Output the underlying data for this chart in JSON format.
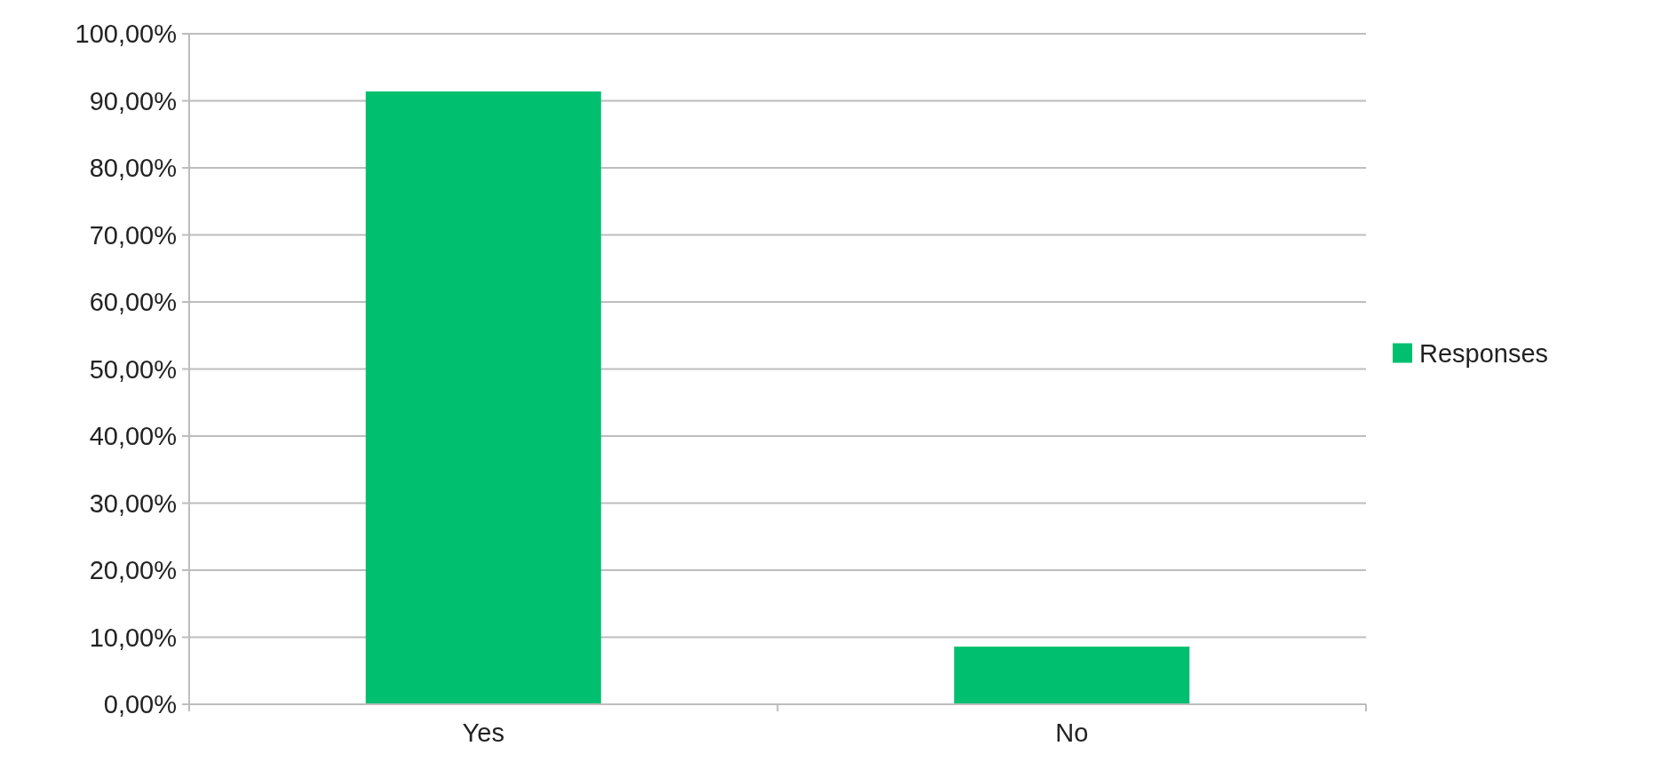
{
  "chart_data": {
    "type": "bar",
    "categories": [
      "Yes",
      "No"
    ],
    "series": [
      {
        "name": "Responses",
        "color": "#00bf6f",
        "values": [
          91.4,
          8.6
        ]
      }
    ],
    "ylim": [
      0,
      100
    ],
    "yticks": [
      {
        "value": 0,
        "label": "0,00%"
      },
      {
        "value": 10,
        "label": "10,00%"
      },
      {
        "value": 20,
        "label": "20,00%"
      },
      {
        "value": 30,
        "label": "30,00%"
      },
      {
        "value": 40,
        "label": "40,00%"
      },
      {
        "value": 50,
        "label": "50,00%"
      },
      {
        "value": 60,
        "label": "60,00%"
      },
      {
        "value": 70,
        "label": "70,00%"
      },
      {
        "value": 80,
        "label": "80,00%"
      },
      {
        "value": 90,
        "label": "90,00%"
      },
      {
        "value": 100,
        "label": "100,00%"
      }
    ],
    "grid": "y",
    "legend": "right"
  }
}
